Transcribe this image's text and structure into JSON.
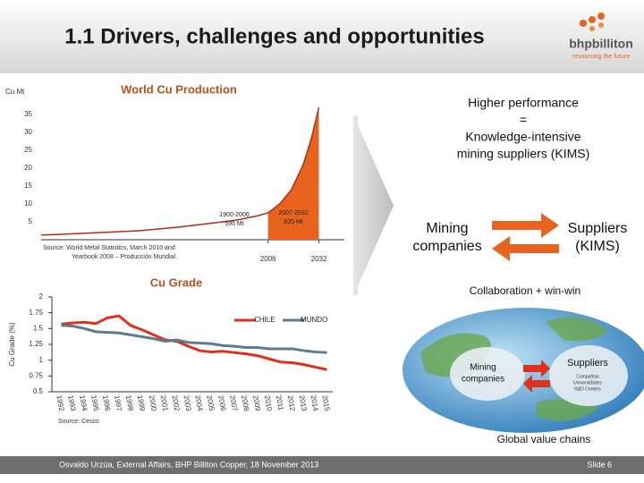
{
  "header": {
    "title": "1.1 Drivers, challenges and opportunities",
    "logo_name": "bhpbilliton",
    "logo_tagline": "resourcing the future"
  },
  "chart_data": [
    {
      "type": "area",
      "title": "World Cu Production",
      "y_label": "Cu Mt",
      "x": [
        1890,
        1900,
        1920,
        1940,
        1960,
        1980,
        1990,
        2000,
        2006,
        2012,
        2018,
        2024,
        2028,
        2032
      ],
      "values": [
        1.3,
        1.5,
        2,
        2.5,
        3.5,
        4.8,
        5.5,
        6.6,
        7.5,
        10,
        14,
        21,
        28,
        37
      ],
      "xlim": [
        1890,
        2045
      ],
      "ylim": [
        0,
        38
      ],
      "xticks": [
        2006,
        2032
      ],
      "yticks": [
        5,
        10,
        15,
        20,
        25,
        30,
        35
      ],
      "color": "#e8641e",
      "line_color": "#b32a1c",
      "annotations": [
        [
          "1900-2006",
          "595 Mt"
        ],
        [
          "2007-2032",
          "620 Mt"
        ]
      ],
      "source": [
        "Source:  World Metal Statistics, March 2010 and",
        "Yearbook 2008 – Producción Mundial."
      ]
    },
    {
      "type": "line",
      "title": "Cu Grade",
      "y_label": "Cu Grade (%)",
      "categories": [
        "1992",
        "1993",
        "1994",
        "1995",
        "1996",
        "1997",
        "1998",
        "1999",
        "2000",
        "2001",
        "2002",
        "2003",
        "2004",
        "2005",
        "2006",
        "2007",
        "2008",
        "2009",
        "2010",
        "2011",
        "2012",
        "2013",
        "2014",
        "2015"
      ],
      "series": [
        {
          "name": "CHILE",
          "color": "#e0301e",
          "values": [
            1.57,
            1.59,
            1.6,
            1.58,
            1.67,
            1.7,
            1.55,
            1.48,
            1.4,
            1.32,
            1.3,
            1.22,
            1.15,
            1.13,
            1.14,
            1.12,
            1.1,
            1.07,
            1.02,
            0.97,
            0.96,
            0.93,
            0.89,
            0.85
          ]
        },
        {
          "name": "MUNDO",
          "color": "#5b7b95",
          "values": [
            1.55,
            1.54,
            1.5,
            1.45,
            1.44,
            1.43,
            1.4,
            1.37,
            1.34,
            1.3,
            1.32,
            1.28,
            1.27,
            1.26,
            1.23,
            1.22,
            1.2,
            1.2,
            1.18,
            1.18,
            1.18,
            1.15,
            1.13,
            1.12
          ]
        }
      ],
      "ylim": [
        0.5,
        2
      ],
      "yticks": [
        0.5,
        0.75,
        1,
        1.25,
        1.5,
        1.75,
        2
      ],
      "source": "Source: Cesco"
    }
  ],
  "panel": {
    "headline": [
      "Higher performance",
      "=",
      "Knowledge-intensive",
      "mining suppliers (KIMS)"
    ],
    "left_node": [
      "Mining",
      "companies"
    ],
    "right_node": [
      "Suppliers",
      "(KIMS)"
    ],
    "caption": "Collaboration + win-win",
    "globe": {
      "left": [
        "Mining",
        "companies"
      ],
      "right": "Suppliers",
      "right_items": [
        "Compañías",
        "Universidades",
        "R&D Centers"
      ],
      "caption": "Global value chains"
    }
  },
  "footer": {
    "text": "Osvaldo Urzúa, External Affairs, BHP Billiton Copper, 18 November 2013",
    "slide": "Slide 6"
  }
}
